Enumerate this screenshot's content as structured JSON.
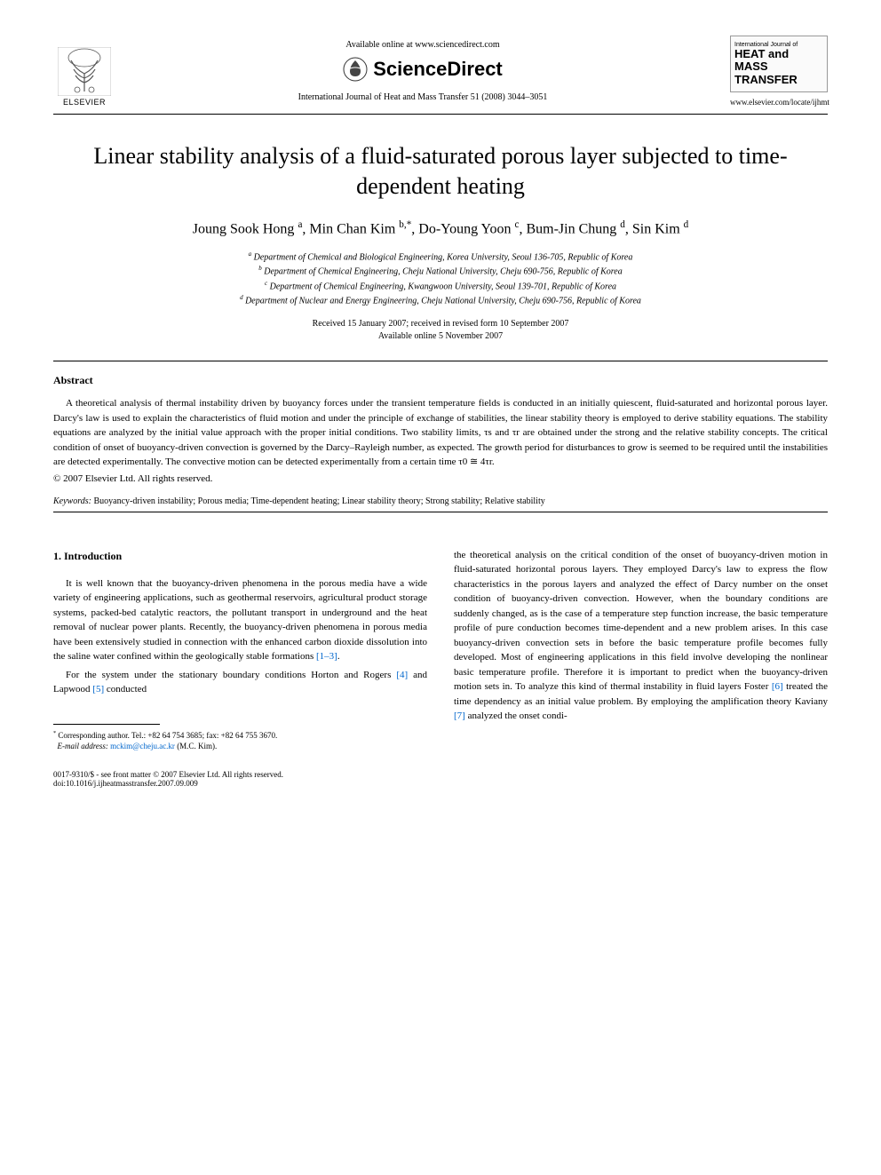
{
  "header": {
    "available_online": "Available online at www.sciencedirect.com",
    "sciencedirect": "ScienceDirect",
    "citation": "International Journal of Heat and Mass Transfer 51 (2008) 3044–3051",
    "elsevier_label": "ELSEVIER",
    "journal_box": {
      "intl": "International Journal of",
      "line1": "HEAT and MASS",
      "line2": "TRANSFER"
    },
    "journal_url": "www.elsevier.com/locate/ijhmt"
  },
  "title": "Linear stability analysis of a fluid-saturated porous layer subjected to time-dependent heating",
  "authors_html": "Joung Sook Hong <sup>a</sup>, Min Chan Kim <sup>b,*</sup>, Do-Young Yoon <sup>c</sup>, Bum-Jin Chung <sup>d</sup>, Sin Kim <sup>d</sup>",
  "affiliations": {
    "a": "Department of Chemical and Biological Engineering, Korea University, Seoul 136-705, Republic of Korea",
    "b": "Department of Chemical Engineering, Cheju National University, Cheju 690-756, Republic of Korea",
    "c": "Department of Chemical Engineering, Kwangwoon University, Seoul 139-701, Republic of Korea",
    "d": "Department of Nuclear and Energy Engineering, Cheju National University, Cheju 690-756, Republic of Korea"
  },
  "dates": {
    "received": "Received 15 January 2007; received in revised form 10 September 2007",
    "online": "Available online 5 November 2007"
  },
  "abstract": {
    "heading": "Abstract",
    "text": "A theoretical analysis of thermal instability driven by buoyancy forces under the transient temperature fields is conducted in an initially quiescent, fluid-saturated and horizontal porous layer. Darcy's law is used to explain the characteristics of fluid motion and under the principle of exchange of stabilities, the linear stability theory is employed to derive stability equations. The stability equations are analyzed by the initial value approach with the proper initial conditions. Two stability limits, τs and τr are obtained under the strong and the relative stability concepts. The critical condition of onset of buoyancy-driven convection is governed by the Darcy–Rayleigh number, as expected. The growth period for disturbances to grow is seemed to be required until the instabilities are detected experimentally. The convective motion can be detected experimentally from a certain time τ0 ≅ 4τr.",
    "copyright": "© 2007 Elsevier Ltd. All rights reserved."
  },
  "keywords": {
    "label": "Keywords:",
    "text": "Buoyancy-driven instability; Porous media; Time-dependent heating; Linear stability theory; Strong stability; Relative stability"
  },
  "section1": {
    "heading": "1. Introduction",
    "p1_pre": "It is well known that the buoyancy-driven phenomena in the porous media have a wide variety of engineering applications, such as geothermal reservoirs, agricultural product storage systems, packed-bed catalytic reactors, the pollutant transport in underground and the heat removal of nuclear power plants. Recently, the buoyancy-driven phenomena in porous media have been extensively studied in connection with the enhanced carbon dioxide dissolution into the saline water confined within the geologically stable formations ",
    "p1_ref": "[1–3]",
    "p1_post": ".",
    "p2_pre": "For the system under the stationary boundary conditions Horton and Rogers ",
    "p2_ref1": "[4]",
    "p2_mid": " and Lapwood ",
    "p2_ref2": "[5]",
    "p2_post": " conducted",
    "col2_pre": "the theoretical analysis on the critical condition of the onset of buoyancy-driven motion in fluid-saturated horizontal porous layers. They employed Darcy's law to express the flow characteristics in the porous layers and analyzed the effect of Darcy number on the onset condition of buoyancy-driven convection. However, when the boundary conditions are suddenly changed, as is the case of a temperature step function increase, the basic temperature profile of pure conduction becomes time-dependent and a new problem arises. In this case buoyancy-driven convection sets in before the basic temperature profile becomes fully developed. Most of engineering applications in this field involve developing the nonlinear basic temperature profile. Therefore it is important to predict when the buoyancy-driven motion sets in. To analyze this kind of thermal instability in fluid layers Foster ",
    "col2_ref1": "[6]",
    "col2_mid": " treated the time dependency as an initial value problem. By employing the amplification theory Kaviany ",
    "col2_ref2": "[7]",
    "col2_post": " analyzed the onset condi-"
  },
  "footnote": {
    "corr": "Corresponding author. Tel.: +82 64 754 3685; fax: +82 64 755 3670.",
    "email_label": "E-mail address:",
    "email": "mckim@cheju.ac.kr",
    "email_owner": "(M.C. Kim)."
  },
  "bottom": {
    "left1": "0017-9310/$ - see front matter © 2007 Elsevier Ltd. All rights reserved.",
    "left2": "doi:10.1016/j.ijheatmasstransfer.2007.09.009"
  },
  "colors": {
    "link": "#0066cc",
    "text": "#000000",
    "bg": "#ffffff",
    "border": "#000000"
  }
}
